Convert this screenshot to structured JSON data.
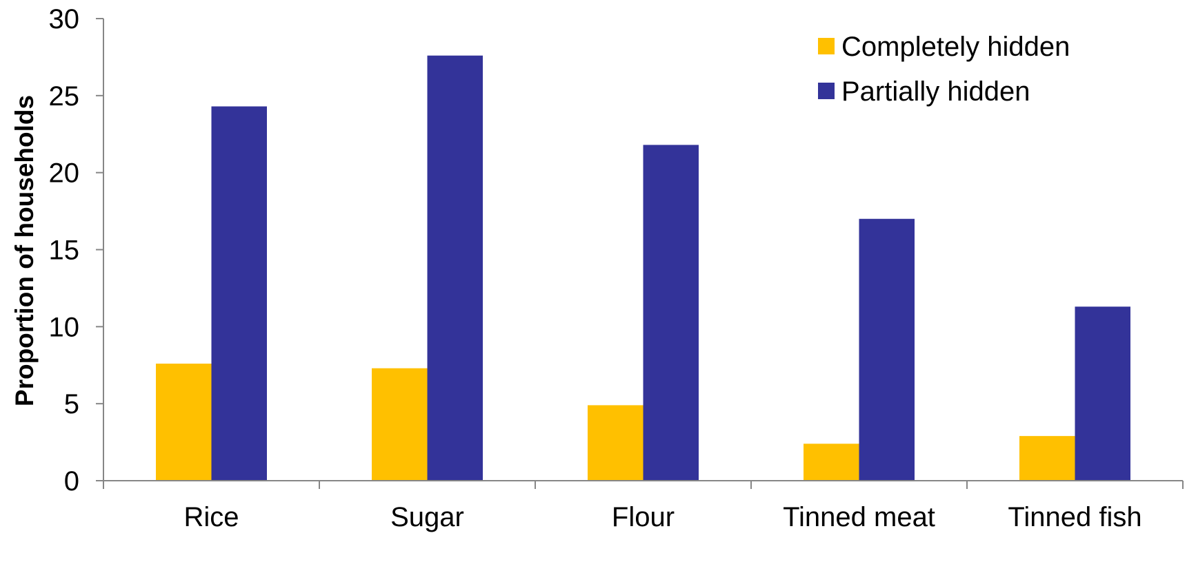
{
  "chart_data": {
    "type": "bar",
    "categories": [
      "Rice",
      "Sugar",
      "Flour",
      "Tinned meat",
      "Tinned fish"
    ],
    "series": [
      {
        "name": "Completely hidden",
        "color": "#FFC000",
        "values": [
          7.6,
          7.3,
          4.9,
          2.4,
          2.9
        ]
      },
      {
        "name": "Partially hidden",
        "color": "#333399",
        "values": [
          24.3,
          27.6,
          21.8,
          17.0,
          11.3
        ]
      }
    ],
    "ylabel": "Proportion of households",
    "xlabel": "",
    "ylim": [
      0,
      30
    ],
    "yticks": [
      0,
      5,
      10,
      15,
      20,
      25,
      30
    ],
    "grid": false,
    "legend": "top-right"
  }
}
